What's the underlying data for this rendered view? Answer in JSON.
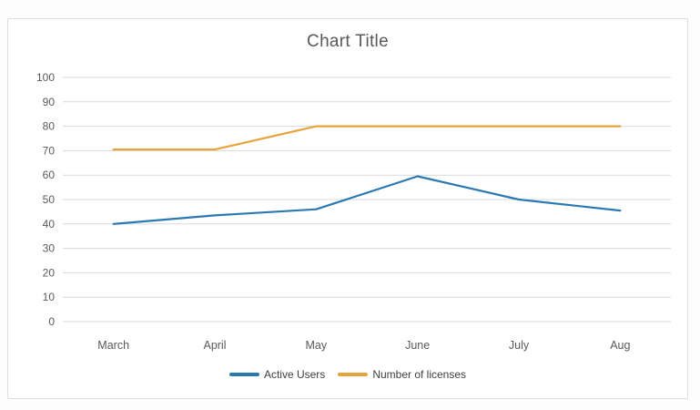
{
  "chart_data": {
    "type": "line",
    "title": "Chart Title",
    "categories": [
      "March",
      "April",
      "May",
      "June",
      "July",
      "Aug"
    ],
    "series": [
      {
        "name": "Active Users",
        "color": "#2b79b2",
        "values": [
          40,
          43.5,
          46,
          59.5,
          50,
          45.5
        ]
      },
      {
        "name": "Number of licenses",
        "color": "#e8a33d",
        "values": [
          70.5,
          70.5,
          80,
          80,
          80,
          80
        ]
      }
    ],
    "xlabel": "",
    "ylabel": "",
    "ylim": [
      0,
      100
    ],
    "ytick_step": 10,
    "grid": true,
    "legend_position": "bottom",
    "colors": {
      "title": "#595959",
      "axis_labels": "#595959",
      "gridline": "#d9d9d9",
      "legend_text": "#404040",
      "frame_border": "#dedede",
      "background": "#ffffff"
    }
  }
}
